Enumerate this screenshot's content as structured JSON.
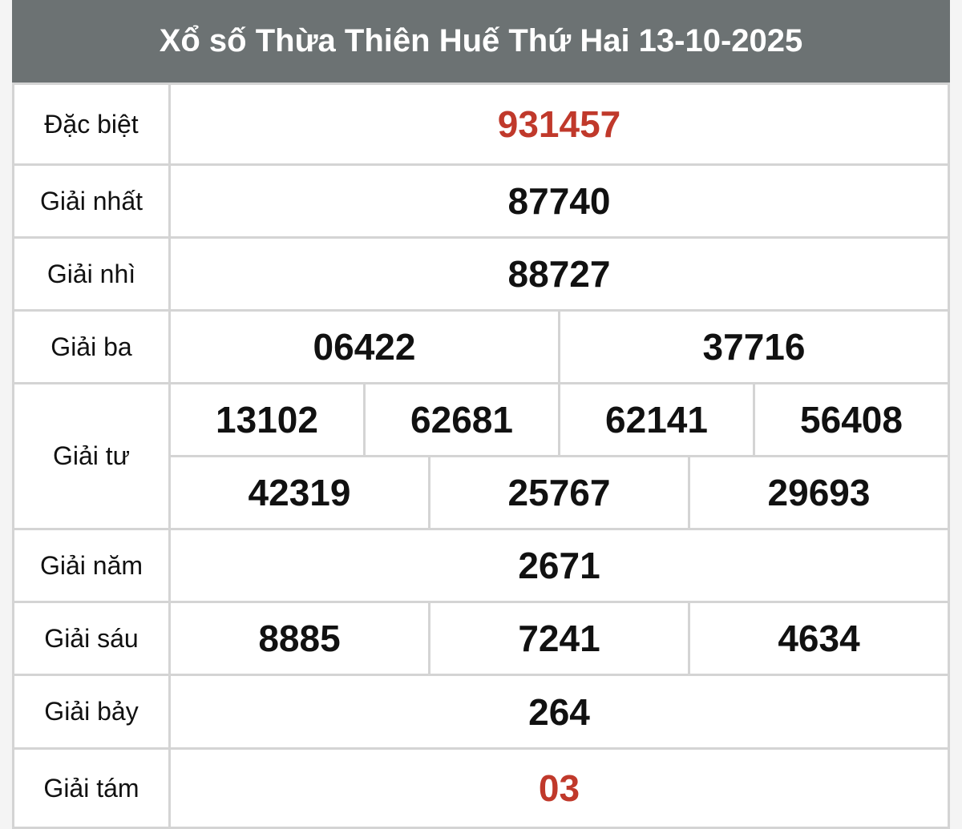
{
  "title": "Xổ số Thừa Thiên Huế Thứ Hai 13-10-2025",
  "colors": {
    "header_bg": "#6c7273",
    "highlight": "#c0392b"
  },
  "prizes": [
    {
      "label": "Đặc biệt",
      "rows": [
        [
          "931457"
        ]
      ],
      "highlight": true
    },
    {
      "label": "Giải nhất",
      "rows": [
        [
          "87740"
        ]
      ]
    },
    {
      "label": "Giải nhì",
      "rows": [
        [
          "88727"
        ]
      ]
    },
    {
      "label": "Giải ba",
      "rows": [
        [
          "06422",
          "37716"
        ]
      ]
    },
    {
      "label": "Giải tư",
      "rows": [
        [
          "13102",
          "62681",
          "62141",
          "56408"
        ],
        [
          "42319",
          "25767",
          "29693"
        ]
      ]
    },
    {
      "label": "Giải năm",
      "rows": [
        [
          "2671"
        ]
      ]
    },
    {
      "label": "Giải sáu",
      "rows": [
        [
          "8885",
          "7241",
          "4634"
        ]
      ]
    },
    {
      "label": "Giải bảy",
      "rows": [
        [
          "264"
        ]
      ]
    },
    {
      "label": "Giải tám",
      "rows": [
        [
          "03"
        ]
      ],
      "highlight": true
    }
  ]
}
